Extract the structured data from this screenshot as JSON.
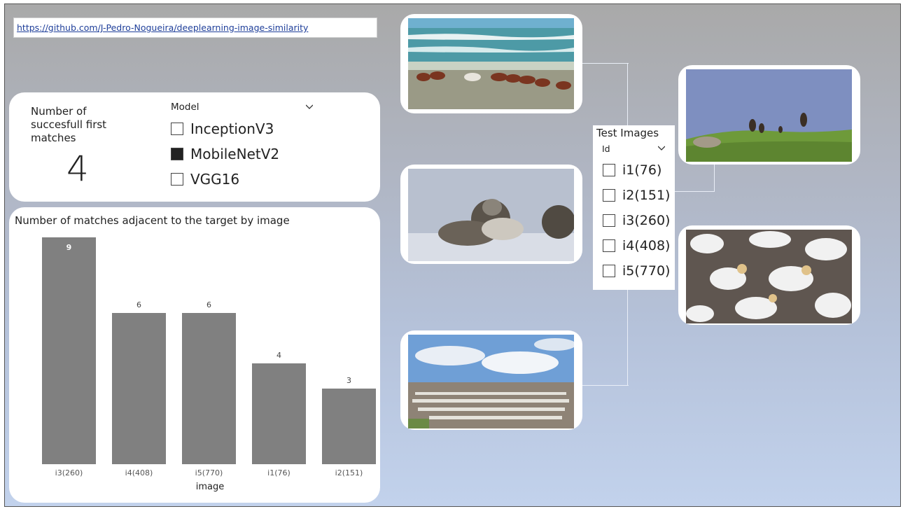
{
  "link": {
    "url": "https://github.com/J-Pedro-Nogueira/deeplearning-image-similarity"
  },
  "kpi": {
    "label": "Number of succesfull first matches",
    "value": "4"
  },
  "model_slicer": {
    "title": "Model",
    "options": [
      {
        "label": "InceptionV3",
        "checked": false
      },
      {
        "label": "MobileNetV2",
        "checked": true
      },
      {
        "label": "VGG16",
        "checked": false
      }
    ]
  },
  "test_images": {
    "title": "Test Images",
    "field": "Id",
    "options": [
      {
        "label": "i1(76)",
        "checked": false
      },
      {
        "label": "i2(151)",
        "checked": false
      },
      {
        "label": "i3(260)",
        "checked": false
      },
      {
        "label": "i4(408)",
        "checked": false
      },
      {
        "label": "i5(770)",
        "checked": false
      }
    ]
  },
  "images": [
    {
      "name": "horses-on-beach-photo",
      "subject": "horses running on beach"
    },
    {
      "name": "seals-on-sand-photo",
      "subject": "seals on sand"
    },
    {
      "name": "gannet-colony-sky-photo",
      "subject": "seabird colony under sky"
    },
    {
      "name": "birds-on-grass-photo",
      "subject": "birds on grassy hill"
    },
    {
      "name": "gannets-closeup-photo",
      "subject": "gannets close-up"
    }
  ],
  "chart_data": {
    "type": "bar",
    "title": "Number of matches adjacent to the target by image",
    "xlabel": "image",
    "ylabel": "",
    "categories": [
      "i3(260)",
      "i4(408)",
      "i5(770)",
      "i1(76)",
      "i2(151)"
    ],
    "values": [
      9,
      6,
      6,
      4,
      3
    ],
    "ylim": [
      0,
      9
    ],
    "bar_color": "#808080",
    "grid": false,
    "data_labels": true
  },
  "colors": {
    "link": "#1f3f9a",
    "card": "#ffffff",
    "checked": "#222222"
  }
}
